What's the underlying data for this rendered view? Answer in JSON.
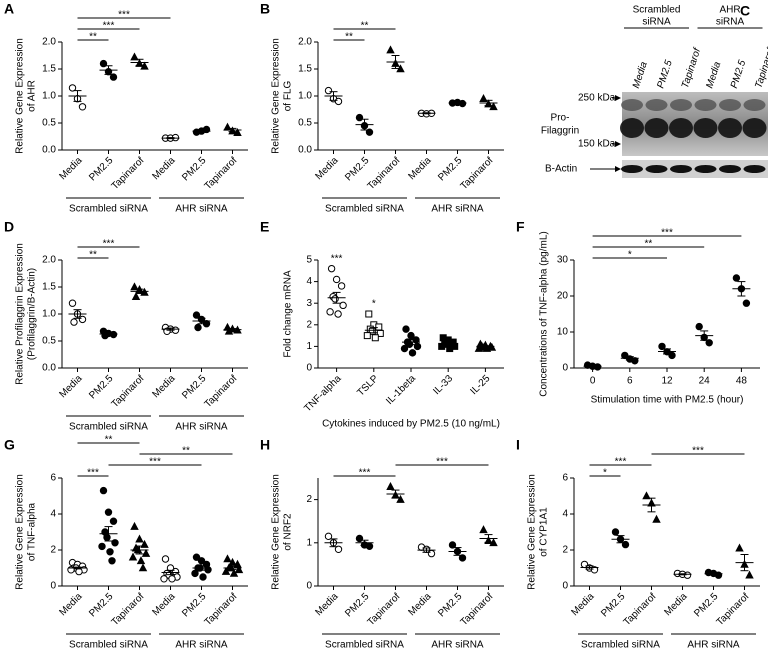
{
  "chart_data": [
    {
      "type": "dot",
      "panel": "A",
      "ylabel": [
        "Relative Gene Expression",
        "of AHR"
      ],
      "categories": [
        "Media",
        "PM2.5",
        "Tapinarof",
        "Media",
        "PM2.5",
        "Tapinarof"
      ],
      "markers": [
        "open-circle",
        "circle",
        "triangle",
        "open-circle",
        "circle",
        "triangle"
      ],
      "points": [
        [
          1.15,
          0.95,
          0.8
        ],
        [
          1.6,
          1.45,
          1.35
        ],
        [
          1.72,
          1.6,
          1.55
        ],
        [
          0.22,
          0.22,
          0.23
        ],
        [
          0.33,
          0.35,
          0.38
        ],
        [
          0.42,
          0.35,
          0.32
        ]
      ],
      "mean": [
        1.0,
        1.48,
        1.62,
        0.22,
        0.35,
        0.37
      ],
      "sem": [
        0.1,
        0.08,
        0.06,
        0.01,
        0.02,
        0.03
      ],
      "ylim": [
        0,
        2.0
      ],
      "yticks": [
        {
          "value": 0,
          "label": "0.0"
        },
        {
          "value": 0.5,
          "label": "0.5"
        },
        {
          "value": 1,
          "label": "1.0"
        },
        {
          "value": 1.5,
          "label": "1.5"
        },
        {
          "value": 2,
          "label": "2.0"
        }
      ],
      "brackets": [
        {
          "from": 0,
          "to": 1,
          "label": "**"
        },
        {
          "from": 0,
          "to": 2,
          "label": "***"
        },
        {
          "from": 0,
          "to": 3,
          "label": "***"
        }
      ],
      "groups": [
        "Scrambled siRNA",
        "AHR siRNA"
      ],
      "rotated_labels": true,
      "color": "#000000"
    },
    {
      "type": "dot",
      "panel": "B",
      "ylabel": [
        "Relative Gene Expression",
        "of FLG"
      ],
      "categories": [
        "Media",
        "PM2.5",
        "Tapinarof",
        "Media",
        "PM2.5",
        "Tapinarof"
      ],
      "markers": [
        "open-circle",
        "circle",
        "triangle",
        "open-circle",
        "circle",
        "triangle"
      ],
      "points": [
        [
          1.1,
          0.95,
          0.9
        ],
        [
          0.6,
          0.45,
          0.33
        ],
        [
          1.85,
          1.6,
          1.5
        ],
        [
          0.68,
          0.67,
          0.68
        ],
        [
          0.87,
          0.88,
          0.86
        ],
        [
          0.95,
          0.85,
          0.8
        ]
      ],
      "mean": [
        1.0,
        0.47,
        1.63,
        0.68,
        0.87,
        0.87
      ],
      "sem": [
        0.08,
        0.1,
        0.12,
        0.01,
        0.01,
        0.05
      ],
      "ylim": [
        0,
        2.0
      ],
      "yticks": [
        {
          "value": 0,
          "label": "0.0"
        },
        {
          "value": 0.5,
          "label": "0.5"
        },
        {
          "value": 1,
          "label": "1.0"
        },
        {
          "value": 1.5,
          "label": "1.5"
        },
        {
          "value": 2,
          "label": "2.0"
        }
      ],
      "brackets": [
        {
          "from": 0,
          "to": 1,
          "label": "**"
        },
        {
          "from": 0,
          "to": 2,
          "label": "**"
        }
      ],
      "groups": [
        "Scrambled siRNA",
        "AHR siRNA"
      ],
      "rotated_labels": true,
      "color": "#000000"
    },
    {
      "type": "dot",
      "panel": "D",
      "ylabel": [
        "Relative Profilaggrin Expression",
        "(Profilaggrin/B-Actin)"
      ],
      "categories": [
        "Media",
        "PM2.5",
        "Tapinarof",
        "Media",
        "PM2.5",
        "Tapinarof"
      ],
      "markers": [
        "open-circle",
        "circle",
        "triangle",
        "open-circle",
        "circle",
        "triangle"
      ],
      "points": [
        [
          1.2,
          1.0,
          0.9,
          0.85
        ],
        [
          0.68,
          0.64,
          0.62,
          0.6
        ],
        [
          1.5,
          1.45,
          1.4,
          1.32
        ],
        [
          0.75,
          0.72,
          0.7,
          0.68
        ],
        [
          0.98,
          0.9,
          0.82,
          0.75
        ],
        [
          0.75,
          0.72,
          0.7,
          0.68
        ]
      ],
      "mean": [
        1.0,
        0.63,
        1.42,
        0.72,
        0.87,
        0.71
      ],
      "sem": [
        0.08,
        0.02,
        0.04,
        0.02,
        0.05,
        0.02
      ],
      "ylim": [
        0,
        2.0
      ],
      "yticks": [
        {
          "value": 0,
          "label": "0.0"
        },
        {
          "value": 0.5,
          "label": "0.5"
        },
        {
          "value": 1,
          "label": "1.0"
        },
        {
          "value": 1.5,
          "label": "1.5"
        },
        {
          "value": 2,
          "label": "2.0"
        }
      ],
      "brackets": [
        {
          "from": 0,
          "to": 1,
          "label": "**"
        },
        {
          "from": 0,
          "to": 2,
          "label": "***"
        }
      ],
      "groups": [
        "Scrambled siRNA",
        "AHR siRNA"
      ],
      "rotated_labels": true,
      "color": "#000000"
    },
    {
      "type": "dot",
      "panel": "E",
      "ylabel": [
        "Fold change mRNA"
      ],
      "categories": [
        "TNF-alpha",
        "TSLP",
        "IL-1beta",
        "IL-33",
        "IL-25"
      ],
      "markers": [
        "open-circle",
        "open-square",
        "circle",
        "square",
        "triangle"
      ],
      "points": [
        [
          4.6,
          4.1,
          3.8,
          3.3,
          3.2,
          2.9,
          2.6,
          2.5
        ],
        [
          2.5,
          2.0,
          1.9,
          1.8,
          1.7,
          1.6,
          1.5,
          1.4
        ],
        [
          1.8,
          1.5,
          1.3,
          1.2,
          1.1,
          1.0,
          0.9,
          0.7
        ],
        [
          1.4,
          1.3,
          1.2,
          1.1,
          1.1,
          1.0,
          1.0,
          0.9
        ],
        [
          1.1,
          1.05,
          1.0,
          1.0,
          0.95,
          0.95,
          0.9,
          0.9
        ]
      ],
      "mean": [
        3.25,
        1.75,
        1.2,
        1.1,
        1.0
      ],
      "sem": [
        0.25,
        0.12,
        0.12,
        0.06,
        0.03
      ],
      "ylim": [
        0,
        5
      ],
      "yticks": [
        0,
        1,
        2,
        3,
        4,
        5
      ],
      "annotations": [
        {
          "category": 0,
          "label": "***"
        },
        {
          "category": 1,
          "label": "*"
        }
      ],
      "xlabel": "Cytokines induced by PM2.5 (10 ng/mL)",
      "rotated_labels": true,
      "color": "#000000"
    },
    {
      "type": "dot",
      "panel": "F",
      "ylabel": [
        "Concentrations of TNF-alpha (pg/mL)"
      ],
      "categories": [
        "0",
        "6",
        "12",
        "24",
        "48"
      ],
      "markers": [
        "circle",
        "circle",
        "circle",
        "circle",
        "circle"
      ],
      "points": [
        [
          0.8,
          0.5,
          0.3
        ],
        [
          3.5,
          2.5,
          2.0
        ],
        [
          6.0,
          4.5,
          3.5
        ],
        [
          11.5,
          8.5,
          7.0
        ],
        [
          25,
          22,
          18
        ]
      ],
      "mean": [
        0.5,
        2.7,
        4.6,
        9.0,
        22
      ],
      "sem": [
        0.15,
        0.45,
        0.7,
        1.3,
        2.0
      ],
      "ylim": [
        0,
        30
      ],
      "yticks": [
        0,
        10,
        20,
        30
      ],
      "brackets": [
        {
          "from": 0,
          "to": 2,
          "label": "*"
        },
        {
          "from": 0,
          "to": 3,
          "label": "**"
        },
        {
          "from": 0,
          "to": 4,
          "label": "***"
        }
      ],
      "xlabel": "Stimulation time with PM2.5 (hour)",
      "rotated_labels": false,
      "color": "#000000"
    },
    {
      "type": "dot",
      "panel": "G",
      "ylabel": [
        "Relative Gene Expression",
        "of TNF-alpha"
      ],
      "categories": [
        "Media",
        "PM2.5",
        "Tapinarof",
        "Media",
        "PM2.5",
        "Tapinarof"
      ],
      "markers": [
        "open-circle",
        "circle",
        "triangle",
        "open-circle",
        "circle",
        "triangle"
      ],
      "points": [
        [
          1.3,
          1.2,
          1.1,
          1.0,
          1.0,
          0.9,
          0.9,
          0.8
        ],
        [
          5.3,
          4.1,
          3.6,
          3.0,
          2.7,
          2.4,
          2.2,
          1.9,
          1.4
        ],
        [
          3.3,
          2.6,
          2.3,
          2.1,
          2.0,
          1.8,
          1.6,
          1.4,
          1.0
        ],
        [
          1.5,
          1.0,
          0.8,
          0.7,
          0.6,
          0.5,
          0.4,
          0.4
        ],
        [
          1.6,
          1.4,
          1.2,
          1.0,
          1.0,
          0.9,
          0.7,
          0.5
        ],
        [
          1.5,
          1.3,
          1.2,
          1.0,
          1.0,
          0.9,
          0.8,
          0.7
        ]
      ],
      "mean": [
        1.0,
        2.9,
        2.0,
        0.75,
        1.0,
        1.0
      ],
      "sem": [
        0.05,
        0.4,
        0.22,
        0.12,
        0.12,
        0.09
      ],
      "ylim": [
        0,
        6
      ],
      "yticks": [
        0,
        2,
        4,
        6
      ],
      "brackets": [
        {
          "from": 0,
          "to": 1,
          "label": "***"
        },
        {
          "from": 1,
          "to": 4,
          "label": "***"
        },
        {
          "from": 2,
          "to": 5,
          "label": "**"
        },
        {
          "from": 0,
          "to": 2,
          "label": "**"
        }
      ],
      "groups": [
        "Scrambled siRNA",
        "AHR siRNA"
      ],
      "rotated_labels": true,
      "color": "#000000"
    },
    {
      "type": "dot",
      "panel": "H",
      "ylabel": [
        "Relative Gene Expression",
        "of NRF2"
      ],
      "categories": [
        "Media",
        "PM2.5",
        "Tapinarof",
        "Media",
        "PM2.5",
        "Tapinarof"
      ],
      "markers": [
        "open-circle",
        "circle",
        "triangle",
        "open-circle",
        "circle",
        "triangle"
      ],
      "points": [
        [
          1.15,
          1.0,
          0.85
        ],
        [
          1.1,
          0.95,
          0.92
        ],
        [
          2.3,
          2.1,
          2.0
        ],
        [
          0.9,
          0.85,
          0.75
        ],
        [
          0.95,
          0.8,
          0.65
        ],
        [
          1.3,
          1.05,
          1.0
        ]
      ],
      "mean": [
        1.0,
        1.0,
        2.13,
        0.83,
        0.8,
        1.1
      ],
      "sem": [
        0.09,
        0.06,
        0.09,
        0.05,
        0.09,
        0.09
      ],
      "ylim": [
        0,
        2.5
      ],
      "yticks": [
        0,
        1,
        2
      ],
      "brackets": [
        {
          "from": 0,
          "to": 2,
          "label": "***"
        },
        {
          "from": 2,
          "to": 5,
          "label": "***"
        }
      ],
      "groups": [
        "Scrambled siRNA",
        "AHR siRNA"
      ],
      "rotated_labels": true,
      "color": "#000000"
    },
    {
      "type": "dot",
      "panel": "I",
      "ylabel": [
        "Relative Gene Expression",
        "of CYP1A1"
      ],
      "categories": [
        "Media",
        "PM2.5",
        "Tapinarof",
        "Media",
        "PM2.5",
        "Tapinarof"
      ],
      "markers": [
        "open-circle",
        "circle",
        "triangle",
        "open-circle",
        "circle",
        "triangle"
      ],
      "points": [
        [
          1.2,
          1.0,
          0.9
        ],
        [
          3.0,
          2.6,
          2.3
        ],
        [
          5.0,
          4.6,
          3.7
        ],
        [
          0.7,
          0.65,
          0.6
        ],
        [
          0.75,
          0.7,
          0.6
        ],
        [
          2.1,
          1.2,
          0.6
        ]
      ],
      "mean": [
        1.03,
        2.6,
        4.5,
        0.65,
        0.68,
        1.3
      ],
      "sem": [
        0.09,
        0.2,
        0.38,
        0.03,
        0.04,
        0.45
      ],
      "ylim": [
        0,
        6
      ],
      "yticks": [
        0,
        2,
        4,
        6
      ],
      "brackets": [
        {
          "from": 0,
          "to": 1,
          "label": "*"
        },
        {
          "from": 0,
          "to": 2,
          "label": "***"
        },
        {
          "from": 2,
          "to": 5,
          "label": "***"
        }
      ],
      "groups": [
        "Scrambled siRNA",
        "AHR siRNA"
      ],
      "rotated_labels": true,
      "color": "#000000"
    }
  ],
  "blot": {
    "panel": "C",
    "group_labels": [
      [
        "Scrambled",
        "siRNA"
      ],
      [
        "AHR",
        "siRNA"
      ]
    ],
    "lanes": [
      "Media",
      "PM2.5",
      "Tapinarof",
      "Media",
      "PM2.5",
      "Tapinarof"
    ],
    "protein": [
      "Pro-",
      "Filaggrin"
    ],
    "size_markers": [
      "250 kDa",
      "150 kDa"
    ],
    "loading_control": "B-Actin"
  }
}
